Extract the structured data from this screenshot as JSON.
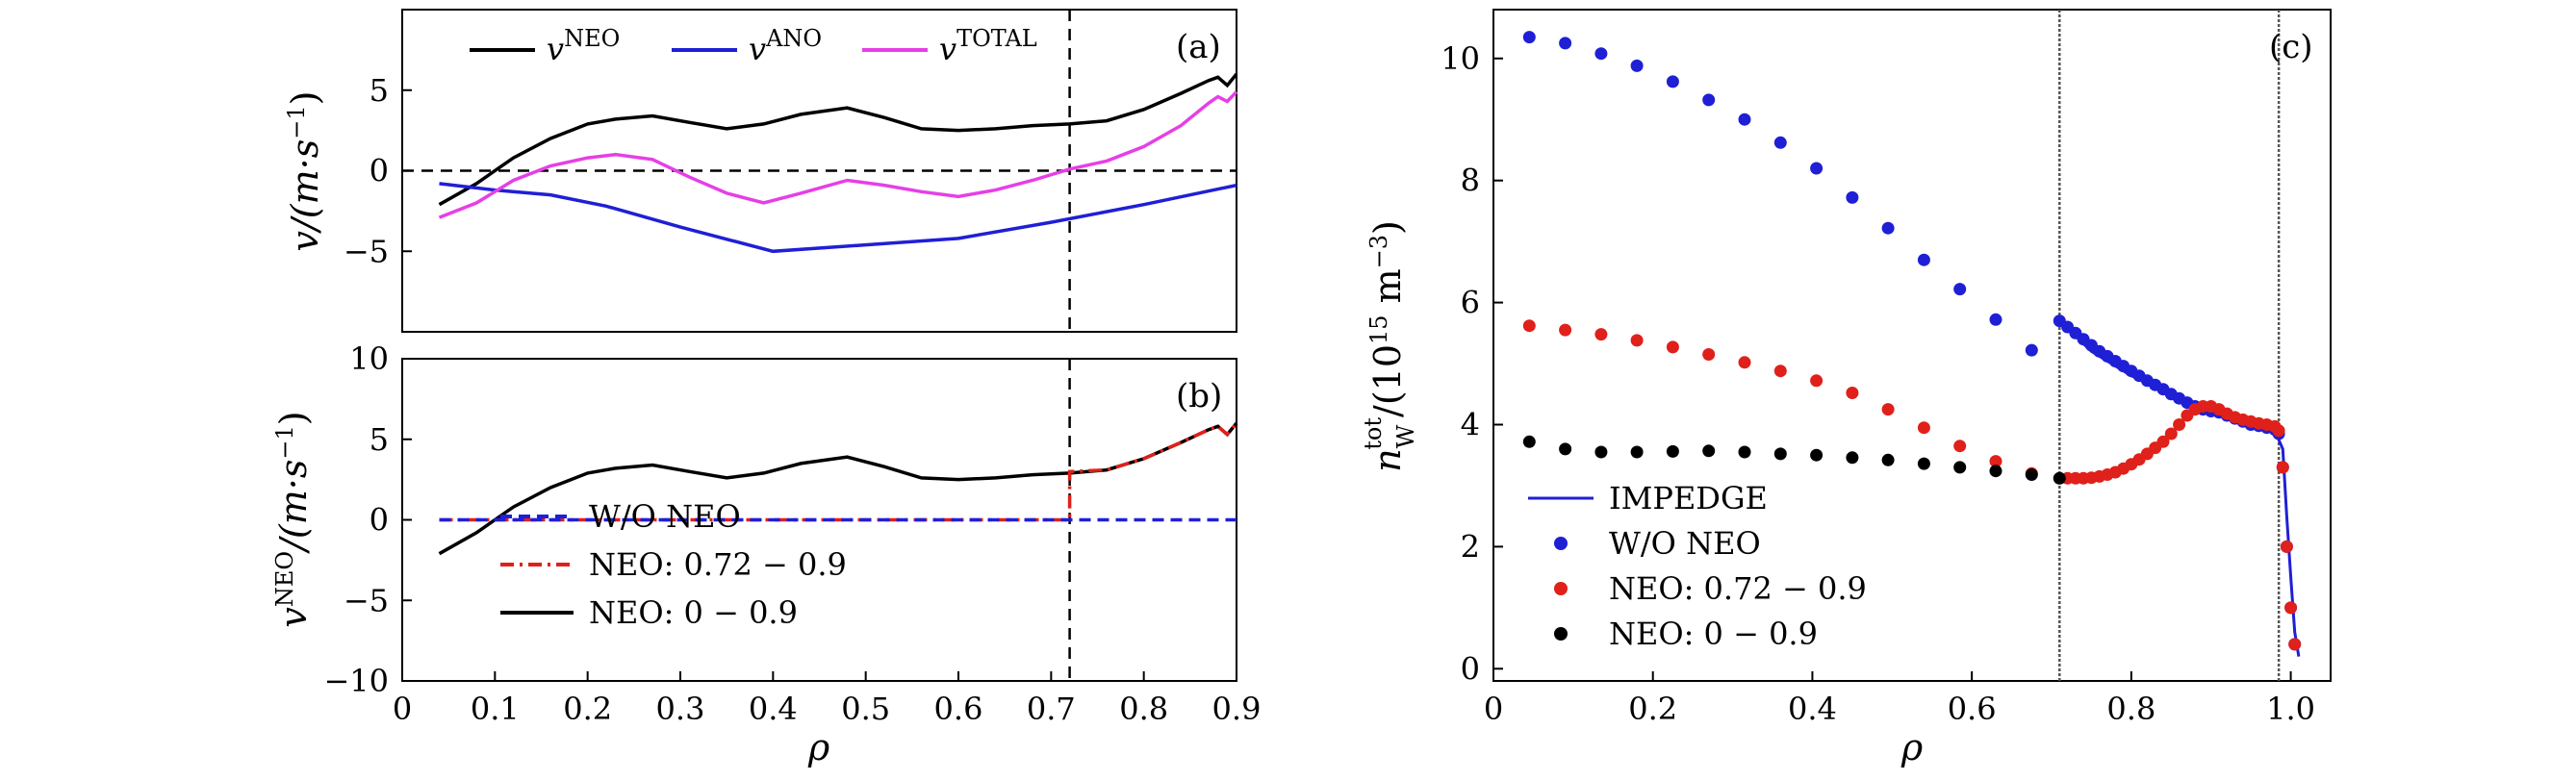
{
  "chart_data": [
    {
      "panel": "(a)",
      "type": "line",
      "xlabel": "ρ",
      "ylabel": "v/(m·s⁻¹)",
      "xlim": [
        0,
        0.9
      ],
      "ylim": [
        -10,
        10
      ],
      "yticks": [
        -5,
        0,
        5
      ],
      "xticks": [],
      "legend_position": "top",
      "vline_x": 0.72,
      "hline_y": 0,
      "colors": {
        "neo": "#000000",
        "ano": "#1f1fd6",
        "total": "#e63fe6"
      },
      "legend": [
        {
          "base": "v",
          "sup": "NEO"
        },
        {
          "base": "v",
          "sup": "ANO"
        },
        {
          "base": "v",
          "sup": "TOTAL"
        }
      ],
      "series": [
        {
          "name": "v^NEO",
          "x": [
            0.04,
            0.08,
            0.12,
            0.16,
            0.2,
            0.23,
            0.27,
            0.31,
            0.35,
            0.39,
            0.43,
            0.48,
            0.52,
            0.56,
            0.6,
            0.64,
            0.68,
            0.72,
            0.76,
            0.8,
            0.84,
            0.87,
            0.88,
            0.89,
            0.9
          ],
          "y": [
            -2.1,
            -0.8,
            0.8,
            2.0,
            2.9,
            3.2,
            3.4,
            3.0,
            2.6,
            2.9,
            3.5,
            3.9,
            3.3,
            2.6,
            2.5,
            2.6,
            2.8,
            2.9,
            3.1,
            3.8,
            4.8,
            5.6,
            5.8,
            5.3,
            6.0
          ]
        },
        {
          "name": "v^ANO",
          "x": [
            0.04,
            0.1,
            0.16,
            0.22,
            0.3,
            0.4,
            0.5,
            0.6,
            0.7,
            0.8,
            0.9
          ],
          "y": [
            -0.8,
            -1.2,
            -1.5,
            -2.2,
            -3.5,
            -5.0,
            -4.6,
            -4.2,
            -3.2,
            -2.1,
            -0.9
          ]
        },
        {
          "name": "v^TOTAL",
          "x": [
            0.04,
            0.08,
            0.12,
            0.16,
            0.2,
            0.23,
            0.27,
            0.31,
            0.35,
            0.39,
            0.43,
            0.48,
            0.52,
            0.56,
            0.6,
            0.64,
            0.68,
            0.72,
            0.76,
            0.8,
            0.84,
            0.87,
            0.88,
            0.89,
            0.9
          ],
          "y": [
            -2.9,
            -2.0,
            -0.6,
            0.3,
            0.8,
            1.0,
            0.7,
            -0.4,
            -1.4,
            -2.0,
            -1.4,
            -0.6,
            -0.9,
            -1.3,
            -1.6,
            -1.2,
            -0.6,
            0.1,
            0.6,
            1.5,
            2.8,
            4.2,
            4.6,
            4.3,
            4.9
          ]
        }
      ]
    },
    {
      "panel": "(b)",
      "type": "line",
      "xlabel": "ρ",
      "ylabel": "v^NEO/(m·s⁻¹)",
      "xlim": [
        0,
        0.9
      ],
      "ylim": [
        -10,
        10
      ],
      "yticks": [
        -10,
        -5,
        0,
        5,
        10
      ],
      "xticks": [
        0,
        0.1,
        0.2,
        0.3,
        0.4,
        0.5,
        0.6,
        0.7,
        0.8,
        0.9
      ],
      "vline_x": 0.72,
      "legend_position": "lower-left",
      "legend": [
        {
          "label": "W/O NEO",
          "color": "#1f1fd6",
          "style": "dashed"
        },
        {
          "label": "NEO: 0.72 − 0.9",
          "color": "#e0201a",
          "style": "dashdot"
        },
        {
          "label": "NEO: 0 − 0.9",
          "color": "#000000",
          "style": "solid"
        }
      ],
      "series": [
        {
          "name": "W/O NEO",
          "x": [
            0.04,
            0.9
          ],
          "y": [
            0,
            0
          ]
        },
        {
          "name": "NEO: 0.72 − 0.9",
          "x": [
            0.04,
            0.72,
            0.72,
            0.76,
            0.8,
            0.84,
            0.87,
            0.88,
            0.89,
            0.9
          ],
          "y": [
            0,
            0,
            3.0,
            3.1,
            3.8,
            4.8,
            5.6,
            5.8,
            5.3,
            6.0
          ]
        },
        {
          "name": "NEO: 0 − 0.9",
          "x": [
            0.04,
            0.08,
            0.12,
            0.16,
            0.2,
            0.23,
            0.27,
            0.31,
            0.35,
            0.39,
            0.43,
            0.48,
            0.52,
            0.56,
            0.6,
            0.64,
            0.68,
            0.72,
            0.76,
            0.8,
            0.84,
            0.87,
            0.88,
            0.89,
            0.9
          ],
          "y": [
            -2.1,
            -0.8,
            0.8,
            2.0,
            2.9,
            3.2,
            3.4,
            3.0,
            2.6,
            2.9,
            3.5,
            3.9,
            3.3,
            2.6,
            2.5,
            2.6,
            2.8,
            2.9,
            3.1,
            3.8,
            4.8,
            5.6,
            5.8,
            5.3,
            6.0
          ]
        }
      ]
    },
    {
      "panel": "(c)",
      "type": "scatter",
      "xlabel": "ρ",
      "ylabel": "n_W^tot/(10¹⁵ m⁻³)",
      "xlim": [
        0,
        1.05
      ],
      "ylim": [
        -0.2,
        10.8
      ],
      "xticks": [
        0,
        0.2,
        0.4,
        0.6,
        0.8,
        1.0
      ],
      "yticks": [
        0,
        2,
        4,
        6,
        8,
        10
      ],
      "vlines_x": [
        0.71,
        0.985
      ],
      "legend_position": "lower-left",
      "legend": [
        {
          "label": "IMPEDGE",
          "color": "#1f1fd6",
          "style": "line"
        },
        {
          "label": "W/O NEO",
          "color": "#1f1fd6",
          "style": "dot"
        },
        {
          "label": "NEO: 0.72 − 0.9",
          "color": "#e0201a",
          "style": "dot"
        },
        {
          "label": "NEO: 0 − 0.9",
          "color": "#000000",
          "style": "dot"
        }
      ],
      "series": [
        {
          "name": "IMPEDGE",
          "x": [
            0.71,
            0.75,
            0.8,
            0.85,
            0.9,
            0.95,
            0.98,
            0.99,
            0.995,
            1.0,
            1.005,
            1.01
          ],
          "y": [
            5.7,
            5.2,
            4.8,
            4.5,
            4.2,
            4.0,
            3.9,
            3.6,
            2.5,
            1.5,
            0.6,
            0.2
          ]
        },
        {
          "name": "W/O NEO",
          "x": [
            0.045,
            0.09,
            0.135,
            0.18,
            0.225,
            0.27,
            0.315,
            0.36,
            0.405,
            0.45,
            0.495,
            0.54,
            0.585,
            0.63,
            0.675,
            0.71,
            0.72,
            0.73,
            0.74,
            0.75,
            0.76,
            0.77,
            0.78,
            0.79,
            0.8,
            0.81,
            0.82,
            0.83,
            0.84,
            0.85,
            0.86,
            0.87,
            0.88,
            0.89,
            0.9,
            0.91,
            0.92,
            0.93,
            0.94,
            0.95,
            0.96,
            0.97,
            0.98,
            0.985,
            0.99,
            0.995,
            1.0,
            1.005
          ],
          "y": [
            10.35,
            10.25,
            10.08,
            9.88,
            9.62,
            9.32,
            9.0,
            8.62,
            8.2,
            7.72,
            7.22,
            6.7,
            6.22,
            5.72,
            5.22,
            5.7,
            5.6,
            5.5,
            5.4,
            5.3,
            5.2,
            5.12,
            5.04,
            4.96,
            4.88,
            4.8,
            4.72,
            4.65,
            4.58,
            4.5,
            4.43,
            4.36,
            4.3,
            4.25,
            4.22,
            4.2,
            4.15,
            4.1,
            4.05,
            4.0,
            3.98,
            3.95,
            3.92,
            3.85,
            3.3,
            2.0,
            1.0,
            0.4
          ]
        },
        {
          "name": "NEO: 0.72 − 0.9",
          "x": [
            0.045,
            0.09,
            0.135,
            0.18,
            0.225,
            0.27,
            0.315,
            0.36,
            0.405,
            0.45,
            0.495,
            0.54,
            0.585,
            0.63,
            0.675,
            0.71,
            0.72,
            0.73,
            0.74,
            0.75,
            0.76,
            0.77,
            0.78,
            0.79,
            0.8,
            0.81,
            0.82,
            0.83,
            0.84,
            0.85,
            0.86,
            0.87,
            0.88,
            0.89,
            0.9,
            0.91,
            0.92,
            0.93,
            0.94,
            0.95,
            0.96,
            0.97,
            0.98,
            0.985,
            0.99,
            0.995,
            1.0,
            1.005
          ],
          "y": [
            5.62,
            5.55,
            5.48,
            5.38,
            5.27,
            5.15,
            5.02,
            4.88,
            4.72,
            4.52,
            4.25,
            3.95,
            3.65,
            3.4,
            3.2,
            3.12,
            3.12,
            3.12,
            3.12,
            3.13,
            3.15,
            3.18,
            3.22,
            3.28,
            3.35,
            3.43,
            3.52,
            3.62,
            3.72,
            3.85,
            4.0,
            4.15,
            4.25,
            4.3,
            4.3,
            4.25,
            4.18,
            4.12,
            4.08,
            4.05,
            4.02,
            4.0,
            3.97,
            3.9,
            3.3,
            2.0,
            1.0,
            0.4
          ]
        },
        {
          "name": "NEO: 0 − 0.9",
          "x": [
            0.045,
            0.09,
            0.135,
            0.18,
            0.225,
            0.27,
            0.315,
            0.36,
            0.405,
            0.45,
            0.495,
            0.54,
            0.585,
            0.63,
            0.675,
            0.71
          ],
          "y": [
            3.72,
            3.6,
            3.55,
            3.55,
            3.56,
            3.57,
            3.55,
            3.52,
            3.5,
            3.46,
            3.42,
            3.36,
            3.3,
            3.24,
            3.18,
            3.12
          ]
        }
      ]
    }
  ]
}
